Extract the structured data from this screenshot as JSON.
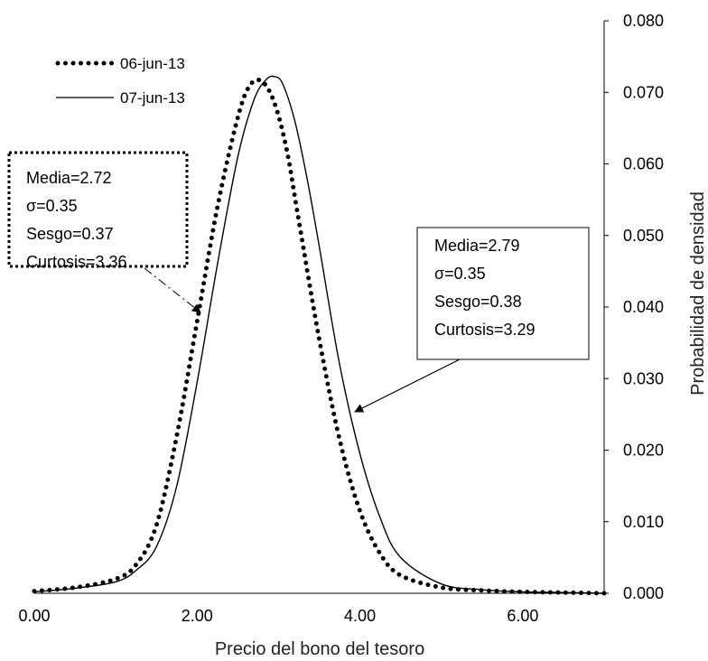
{
  "chart_data": {
    "type": "line",
    "title": "",
    "xlabel": "Precio del bono del tesoro",
    "ylabel": "Probabilidad de densidad",
    "xlim": [
      0,
      7
    ],
    "ylim": [
      0,
      0.08
    ],
    "x_ticks": [
      "0.00",
      "2.00",
      "4.00",
      "6.00"
    ],
    "y_ticks": [
      "0.000",
      "0.010",
      "0.020",
      "0.030",
      "0.040",
      "0.050",
      "0.060",
      "0.070",
      "0.080"
    ],
    "grid": false,
    "legend_position": "top-left",
    "series": [
      {
        "name": "06-jun-13",
        "style": "dotted",
        "color": "#000000",
        "x": [
          0.0,
          0.5,
          1.0,
          1.25,
          1.5,
          1.75,
          2.0,
          2.25,
          2.5,
          2.65,
          2.8,
          2.95,
          3.1,
          3.25,
          3.5,
          3.75,
          4.0,
          4.25,
          4.5,
          5.0,
          5.5,
          6.0,
          6.5,
          7.0
        ],
        "y": [
          0.0003,
          0.0008,
          0.002,
          0.004,
          0.0095,
          0.022,
          0.038,
          0.054,
          0.0665,
          0.071,
          0.0715,
          0.0685,
          0.062,
          0.052,
          0.0355,
          0.0215,
          0.0115,
          0.0055,
          0.0025,
          0.0008,
          0.0004,
          0.0002,
          0.0001,
          0.0
        ]
      },
      {
        "name": "07-jun-13",
        "style": "solid",
        "color": "#000000",
        "x": [
          0.0,
          0.5,
          1.0,
          1.25,
          1.5,
          1.75,
          2.0,
          2.25,
          2.5,
          2.7,
          2.85,
          2.95,
          3.05,
          3.2,
          3.35,
          3.5,
          3.75,
          4.0,
          4.25,
          4.5,
          5.0,
          5.5,
          6.0,
          6.5,
          7.0
        ],
        "y": [
          0.0002,
          0.0007,
          0.0016,
          0.0032,
          0.0065,
          0.015,
          0.0295,
          0.046,
          0.061,
          0.069,
          0.0718,
          0.0722,
          0.0712,
          0.066,
          0.058,
          0.0485,
          0.032,
          0.0195,
          0.0105,
          0.005,
          0.0013,
          0.0005,
          0.0002,
          0.0001,
          0.0
        ]
      }
    ],
    "annotations": [
      {
        "border": "dotted",
        "lines": [
          "Media=2.72",
          "σ=0.35",
          "Sesgo=0.37",
          "Curtosis=3.36"
        ],
        "arrow_style": "dash-dot",
        "arrow_target": [
          2.1,
          0.035
        ]
      },
      {
        "border": "solid",
        "lines": [
          "Media=2.79",
          "σ=0.35",
          "Sesgo=0.38",
          "Curtosis=3.29"
        ],
        "arrow_style": "solid",
        "arrow_target": [
          3.7,
          0.027
        ]
      }
    ]
  }
}
